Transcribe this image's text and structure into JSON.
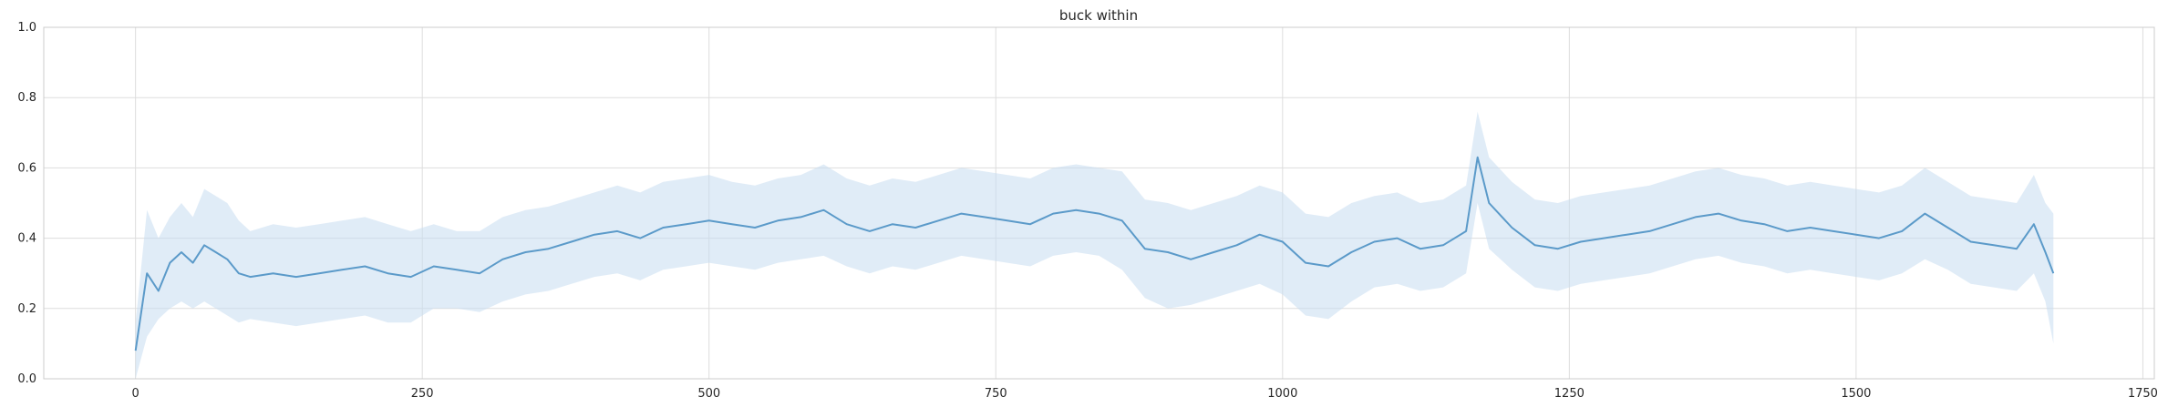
{
  "chart_data": {
    "type": "line",
    "title": "buck within",
    "xlabel": "",
    "ylabel": "",
    "xlim": [
      -80,
      1760
    ],
    "ylim": [
      0.0,
      1.0
    ],
    "x_ticks": [
      0,
      250,
      500,
      750,
      1000,
      1250,
      1500,
      1750
    ],
    "y_ticks": [
      0.0,
      0.2,
      0.4,
      0.6,
      0.8,
      1.0
    ],
    "x_tick_labels": [
      "0",
      "250",
      "500",
      "750",
      "1000",
      "1250",
      "1500",
      "1750"
    ],
    "y_tick_labels": [
      "0.0",
      "0.2",
      "0.4",
      "0.6",
      "0.8",
      "1.0"
    ],
    "grid": true,
    "legend": "none",
    "line_color": "#5b9ac9",
    "band_color": "#c6dcf0",
    "x": [
      0,
      10,
      20,
      30,
      40,
      50,
      60,
      70,
      80,
      90,
      100,
      120,
      140,
      160,
      180,
      200,
      220,
      240,
      260,
      280,
      300,
      320,
      340,
      360,
      380,
      400,
      420,
      440,
      460,
      480,
      500,
      520,
      540,
      560,
      580,
      600,
      620,
      640,
      660,
      680,
      700,
      720,
      740,
      760,
      780,
      800,
      820,
      840,
      860,
      880,
      900,
      920,
      940,
      960,
      980,
      1000,
      1020,
      1040,
      1060,
      1080,
      1100,
      1120,
      1140,
      1160,
      1170,
      1180,
      1200,
      1220,
      1240,
      1260,
      1280,
      1300,
      1320,
      1340,
      1360,
      1380,
      1400,
      1420,
      1440,
      1460,
      1480,
      1500,
      1520,
      1540,
      1560,
      1580,
      1600,
      1620,
      1640,
      1655,
      1665,
      1672
    ],
    "series": [
      {
        "values": [
          0.08,
          0.3,
          0.25,
          0.33,
          0.36,
          0.33,
          0.38,
          0.36,
          0.34,
          0.3,
          0.29,
          0.3,
          0.29,
          0.3,
          0.31,
          0.32,
          0.3,
          0.29,
          0.32,
          0.31,
          0.3,
          0.34,
          0.36,
          0.37,
          0.39,
          0.41,
          0.42,
          0.4,
          0.43,
          0.44,
          0.45,
          0.44,
          0.43,
          0.45,
          0.46,
          0.48,
          0.44,
          0.42,
          0.44,
          0.43,
          0.45,
          0.47,
          0.46,
          0.45,
          0.44,
          0.47,
          0.48,
          0.47,
          0.45,
          0.37,
          0.36,
          0.34,
          0.36,
          0.38,
          0.41,
          0.39,
          0.33,
          0.32,
          0.36,
          0.39,
          0.4,
          0.37,
          0.38,
          0.42,
          0.63,
          0.5,
          0.43,
          0.38,
          0.37,
          0.39,
          0.4,
          0.41,
          0.42,
          0.44,
          0.46,
          0.47,
          0.45,
          0.44,
          0.42,
          0.43,
          0.42,
          0.41,
          0.4,
          0.42,
          0.47,
          0.43,
          0.39,
          0.38,
          0.37,
          0.44,
          0.36,
          0.3
        ],
        "lower": [
          0.0,
          0.12,
          0.17,
          0.2,
          0.22,
          0.2,
          0.22,
          0.2,
          0.18,
          0.16,
          0.17,
          0.16,
          0.15,
          0.16,
          0.17,
          0.18,
          0.16,
          0.16,
          0.2,
          0.2,
          0.19,
          0.22,
          0.24,
          0.25,
          0.27,
          0.29,
          0.3,
          0.28,
          0.31,
          0.32,
          0.33,
          0.32,
          0.31,
          0.33,
          0.34,
          0.35,
          0.32,
          0.3,
          0.32,
          0.31,
          0.33,
          0.35,
          0.34,
          0.33,
          0.32,
          0.35,
          0.36,
          0.35,
          0.31,
          0.23,
          0.2,
          0.21,
          0.23,
          0.25,
          0.27,
          0.24,
          0.18,
          0.17,
          0.22,
          0.26,
          0.27,
          0.25,
          0.26,
          0.3,
          0.5,
          0.37,
          0.31,
          0.26,
          0.25,
          0.27,
          0.28,
          0.29,
          0.3,
          0.32,
          0.34,
          0.35,
          0.33,
          0.32,
          0.3,
          0.31,
          0.3,
          0.29,
          0.28,
          0.3,
          0.34,
          0.31,
          0.27,
          0.26,
          0.25,
          0.3,
          0.22,
          0.1
        ],
        "upper": [
          0.16,
          0.48,
          0.4,
          0.46,
          0.5,
          0.46,
          0.54,
          0.52,
          0.5,
          0.45,
          0.42,
          0.44,
          0.43,
          0.44,
          0.45,
          0.46,
          0.44,
          0.42,
          0.44,
          0.42,
          0.42,
          0.46,
          0.48,
          0.49,
          0.51,
          0.53,
          0.55,
          0.53,
          0.56,
          0.57,
          0.58,
          0.56,
          0.55,
          0.57,
          0.58,
          0.61,
          0.57,
          0.55,
          0.57,
          0.56,
          0.58,
          0.6,
          0.59,
          0.58,
          0.57,
          0.6,
          0.61,
          0.6,
          0.59,
          0.51,
          0.5,
          0.48,
          0.5,
          0.52,
          0.55,
          0.53,
          0.47,
          0.46,
          0.5,
          0.52,
          0.53,
          0.5,
          0.51,
          0.55,
          0.76,
          0.63,
          0.56,
          0.51,
          0.5,
          0.52,
          0.53,
          0.54,
          0.55,
          0.57,
          0.59,
          0.6,
          0.58,
          0.57,
          0.55,
          0.56,
          0.55,
          0.54,
          0.53,
          0.55,
          0.6,
          0.56,
          0.52,
          0.51,
          0.5,
          0.58,
          0.5,
          0.47
        ]
      }
    ]
  }
}
